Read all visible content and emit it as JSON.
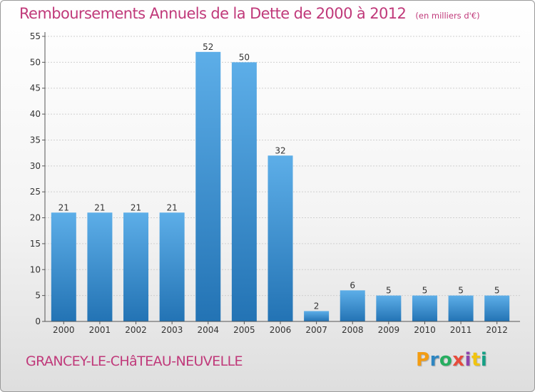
{
  "header": {
    "title": "Remboursements Annuels de la Dette de 2000 à 2012",
    "subtitle": "(en milliers d'€)"
  },
  "footer": {
    "commune": "GRANCEY-LE-CHâTEAU-NEUVELLE",
    "brand": "Proxiti",
    "brand_letters": [
      "P",
      "r",
      "o",
      "x",
      "i",
      "t",
      "i"
    ],
    "brand_colors": [
      "#f39c12",
      "#2e86c1",
      "#27ae60",
      "#e74c3c",
      "#8e44ad",
      "#f1c40f",
      "#16a085"
    ]
  },
  "colors": {
    "accent": "#c0397a",
    "bar_top": "#5daee8",
    "bar_bottom": "#2373b4",
    "grid": "#cfcfcf",
    "axis": "#555555"
  },
  "chart_data": {
    "type": "bar",
    "title": "Remboursements Annuels de la Dette de 2000 à 2012",
    "subtitle": "(en milliers d'€)",
    "categories": [
      "2000",
      "2001",
      "2002",
      "2003",
      "2004",
      "2005",
      "2006",
      "2007",
      "2008",
      "2009",
      "2010",
      "2011",
      "2012"
    ],
    "values": [
      21,
      21,
      21,
      21,
      52,
      50,
      32,
      2,
      6,
      5,
      5,
      5,
      5
    ],
    "ylim": [
      0,
      55
    ],
    "yticks": [
      0,
      5,
      10,
      15,
      20,
      25,
      30,
      35,
      40,
      45,
      50,
      55
    ],
    "grid": true,
    "data_labels": true
  }
}
